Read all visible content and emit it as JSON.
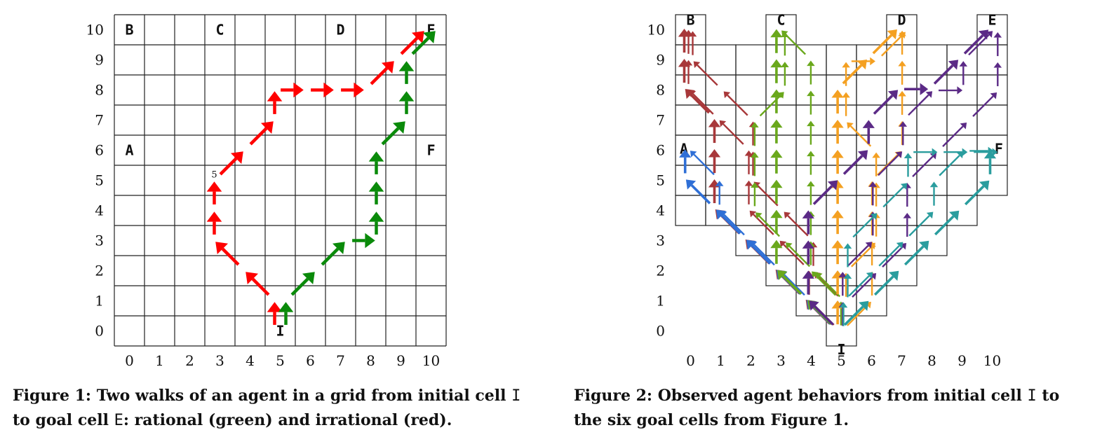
{
  "figure1": {
    "xticks": [
      "0",
      "1",
      "2",
      "3",
      "4",
      "5",
      "6",
      "7",
      "8",
      "9",
      "10"
    ],
    "yticks": [
      "0",
      "1",
      "2",
      "3",
      "4",
      "5",
      "6",
      "7",
      "8",
      "9",
      "10"
    ],
    "cells": [
      {
        "text": "B",
        "x": 0,
        "y": 10
      },
      {
        "text": "C",
        "x": 3,
        "y": 10
      },
      {
        "text": "D",
        "x": 7,
        "y": 10
      },
      {
        "text": "E",
        "x": 10,
        "y": 10
      },
      {
        "text": "A",
        "x": 0,
        "y": 6
      },
      {
        "text": "F",
        "x": 10,
        "y": 6
      },
      {
        "text": "I",
        "x": 5,
        "y": 0
      }
    ],
    "step_label": {
      "text": "5",
      "x": 3,
      "y": 5
    },
    "colors": {
      "rational": "#0a8a0a",
      "irrational": "#ff0000"
    },
    "walks": {
      "rational": [
        [
          5,
          0
        ],
        [
          5,
          1
        ],
        [
          6,
          2
        ],
        [
          7,
          3
        ],
        [
          8,
          3
        ],
        [
          8,
          4
        ],
        [
          8,
          5
        ],
        [
          8,
          6
        ],
        [
          9,
          7
        ],
        [
          9,
          8
        ],
        [
          9,
          9
        ],
        [
          10,
          10
        ]
      ],
      "irrational": [
        [
          5,
          0
        ],
        [
          5,
          1
        ],
        [
          4,
          2
        ],
        [
          3,
          3
        ],
        [
          3,
          4
        ],
        [
          3,
          5
        ],
        [
          4,
          6
        ],
        [
          5,
          7
        ],
        [
          5,
          8
        ],
        [
          6,
          8
        ],
        [
          7,
          8
        ],
        [
          8,
          8
        ],
        [
          9,
          9
        ],
        [
          10,
          10
        ]
      ]
    },
    "caption_parts": [
      "Figure 1: Two walks of an agent in a grid from initial cell ",
      "I",
      " to goal cell ",
      "E",
      ": rational (green) and irrational (red)."
    ]
  },
  "figure2": {
    "xticks": [
      "0",
      "1",
      "2",
      "3",
      "4",
      "5",
      "6",
      "7",
      "8",
      "9",
      "10"
    ],
    "yticks": [
      "0",
      "1",
      "2",
      "3",
      "4",
      "5",
      "6",
      "7",
      "8",
      "9",
      "10"
    ],
    "cells": [
      {
        "text": "B",
        "x": 0,
        "y": 10
      },
      {
        "text": "C",
        "x": 3,
        "y": 10
      },
      {
        "text": "D",
        "x": 7,
        "y": 10
      },
      {
        "text": "E",
        "x": 10,
        "y": 10
      },
      {
        "text": "A",
        "x": 0,
        "y": 6
      },
      {
        "text": "F",
        "x": 10,
        "y": 6
      },
      {
        "text": "I",
        "x": 5,
        "y": 0
      }
    ],
    "colors": {
      "A": "#2f6fd6",
      "B": "#a8383a",
      "C": "#6aa81c",
      "D": "#f4a021",
      "E": "#5b2a86",
      "F": "#2a9d9e"
    },
    "paths": {
      "B": [
        [
          [
            5,
            0
          ],
          [
            4,
            1
          ],
          [
            3,
            2
          ],
          [
            2,
            3
          ],
          [
            1,
            4
          ],
          [
            1,
            5
          ],
          [
            1,
            6
          ],
          [
            1,
            7
          ],
          [
            0,
            8
          ],
          [
            0,
            9
          ],
          [
            0,
            10
          ]
        ],
        [
          [
            5,
            0
          ],
          [
            4,
            1
          ],
          [
            4,
            2
          ],
          [
            3,
            3
          ],
          [
            2,
            4
          ],
          [
            2,
            5
          ],
          [
            2,
            6
          ],
          [
            1,
            7
          ],
          [
            0,
            8
          ],
          [
            0,
            9
          ],
          [
            0,
            10
          ]
        ],
        [
          [
            5,
            1
          ],
          [
            4,
            2
          ],
          [
            4,
            3
          ],
          [
            3,
            4
          ],
          [
            2,
            5
          ],
          [
            2,
            6
          ],
          [
            2,
            7
          ],
          [
            1,
            8
          ],
          [
            0,
            9
          ],
          [
            0,
            10
          ]
        ]
      ],
      "A": [
        [
          [
            5,
            0
          ],
          [
            4,
            1
          ],
          [
            3,
            2
          ],
          [
            2,
            3
          ],
          [
            1,
            4
          ],
          [
            0,
            5
          ],
          [
            0,
            6
          ]
        ],
        [
          [
            4,
            1
          ],
          [
            3,
            2
          ],
          [
            2,
            3
          ],
          [
            1,
            4
          ],
          [
            1,
            5
          ],
          [
            0,
            6
          ]
        ]
      ],
      "C": [
        [
          [
            5,
            0
          ],
          [
            4,
            1
          ],
          [
            3,
            2
          ],
          [
            3,
            3
          ],
          [
            3,
            4
          ],
          [
            3,
            5
          ],
          [
            3,
            6
          ],
          [
            3,
            7
          ],
          [
            3,
            8
          ],
          [
            3,
            9
          ],
          [
            3,
            10
          ]
        ],
        [
          [
            5,
            0
          ],
          [
            5,
            1
          ],
          [
            4,
            2
          ],
          [
            4,
            3
          ],
          [
            4,
            4
          ],
          [
            4,
            5
          ],
          [
            4,
            6
          ],
          [
            4,
            7
          ],
          [
            4,
            8
          ],
          [
            4,
            9
          ],
          [
            3,
            10
          ]
        ],
        [
          [
            5,
            1
          ],
          [
            4,
            2
          ],
          [
            3,
            3
          ],
          [
            2,
            4
          ],
          [
            2,
            5
          ],
          [
            2,
            6
          ],
          [
            2,
            7
          ],
          [
            3,
            8
          ],
          [
            3,
            9
          ],
          [
            3,
            10
          ]
        ]
      ],
      "D": [
        [
          [
            5,
            0
          ],
          [
            5,
            1
          ],
          [
            5,
            2
          ],
          [
            5,
            3
          ],
          [
            5,
            4
          ],
          [
            5,
            5
          ],
          [
            5,
            6
          ],
          [
            5,
            7
          ],
          [
            5,
            8
          ],
          [
            6,
            9
          ],
          [
            7,
            10
          ]
        ],
        [
          [
            5,
            0
          ],
          [
            6,
            1
          ],
          [
            6,
            2
          ],
          [
            6,
            3
          ],
          [
            6,
            4
          ],
          [
            6,
            5
          ],
          [
            7,
            6
          ],
          [
            7,
            7
          ],
          [
            7,
            8
          ],
          [
            7,
            9
          ],
          [
            7,
            10
          ]
        ],
        [
          [
            5,
            1
          ],
          [
            5,
            2
          ],
          [
            6,
            3
          ],
          [
            6,
            4
          ],
          [
            6,
            5
          ],
          [
            6,
            6
          ],
          [
            5,
            7
          ],
          [
            5,
            8
          ],
          [
            5,
            9
          ],
          [
            6,
            9
          ],
          [
            7,
            10
          ]
        ]
      ],
      "E": [
        [
          [
            5,
            0
          ],
          [
            4,
            1
          ],
          [
            4,
            2
          ],
          [
            4,
            3
          ],
          [
            4,
            4
          ],
          [
            5,
            5
          ],
          [
            6,
            6
          ],
          [
            6,
            7
          ],
          [
            7,
            8
          ],
          [
            8,
            8
          ],
          [
            9,
            9
          ],
          [
            10,
            10
          ]
        ],
        [
          [
            5,
            0
          ],
          [
            5,
            1
          ],
          [
            5,
            2
          ],
          [
            6,
            3
          ],
          [
            6,
            4
          ],
          [
            6,
            5
          ],
          [
            7,
            6
          ],
          [
            7,
            7
          ],
          [
            8,
            8
          ],
          [
            9,
            8
          ],
          [
            9,
            9
          ],
          [
            10,
            10
          ]
        ],
        [
          [
            5,
            1
          ],
          [
            6,
            2
          ],
          [
            7,
            3
          ],
          [
            7,
            4
          ],
          [
            7,
            5
          ],
          [
            8,
            6
          ],
          [
            9,
            7
          ],
          [
            10,
            8
          ],
          [
            10,
            9
          ],
          [
            10,
            10
          ]
        ]
      ],
      "F": [
        [
          [
            5,
            0
          ],
          [
            6,
            1
          ],
          [
            7,
            2
          ],
          [
            8,
            3
          ],
          [
            9,
            4
          ],
          [
            10,
            5
          ],
          [
            10,
            6
          ]
        ],
        [
          [
            5,
            0
          ],
          [
            5,
            1
          ],
          [
            6,
            2
          ],
          [
            7,
            3
          ],
          [
            8,
            4
          ],
          [
            8,
            5
          ],
          [
            9,
            6
          ],
          [
            10,
            6
          ]
        ],
        [
          [
            5,
            1
          ],
          [
            5,
            2
          ],
          [
            5,
            3
          ],
          [
            6,
            4
          ],
          [
            7,
            5
          ],
          [
            7,
            6
          ],
          [
            8,
            6
          ],
          [
            9,
            6
          ],
          [
            10,
            6
          ]
        ]
      ]
    },
    "caption_parts": [
      "Figure 2: Observed agent behaviors from initial cell ",
      "I",
      " to the six goal cells from Figure 1."
    ]
  }
}
